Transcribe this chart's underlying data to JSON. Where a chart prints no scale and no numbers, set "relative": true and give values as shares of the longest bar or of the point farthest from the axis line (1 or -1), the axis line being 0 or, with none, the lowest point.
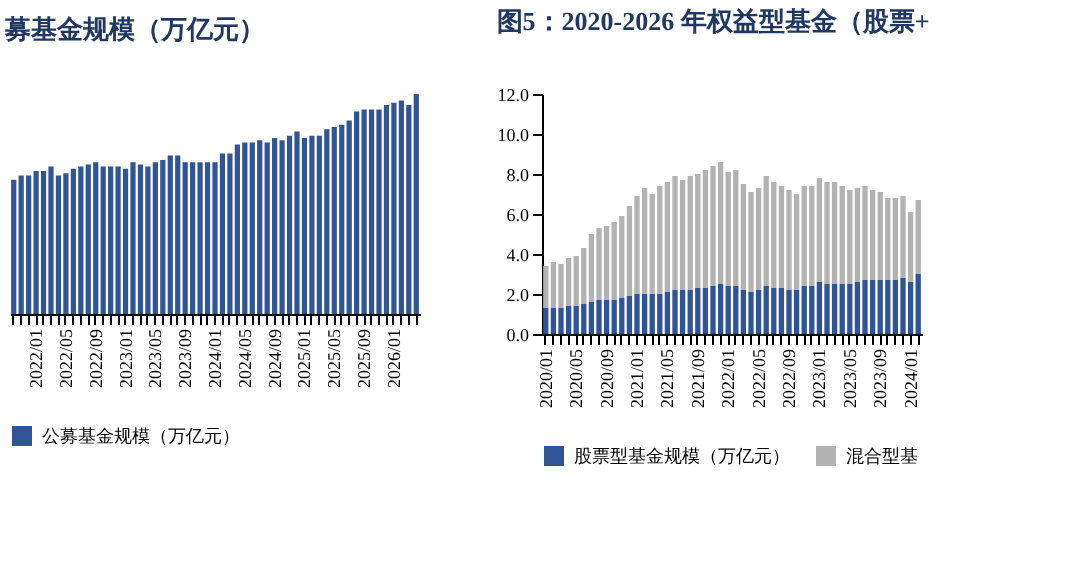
{
  "chart_data": [
    {
      "type": "bar",
      "title": "募基金规模（万亿元）",
      "relative": true,
      "legend": "bottom",
      "grid": false,
      "categories": [
        null,
        null,
        null,
        "2022/01",
        null,
        null,
        null,
        "2022/05",
        null,
        null,
        null,
        "2022/09",
        null,
        null,
        null,
        "2023/01",
        null,
        null,
        null,
        "2023/05",
        null,
        null,
        null,
        "2023/09",
        null,
        null,
        null,
        "2024/01",
        null,
        null,
        null,
        "2024/05",
        null,
        null,
        null,
        "2024/09",
        null,
        null,
        null,
        "2025/01",
        null,
        null,
        null,
        "2025/05",
        null,
        null,
        null,
        "2025/09",
        null,
        null,
        null,
        "2026/01",
        null,
        null,
        null
      ],
      "series": [
        {
          "name": "公募基金规模（万亿元）",
          "color": "#2f5597",
          "values": [
            0.61,
            0.63,
            0.63,
            0.65,
            0.65,
            0.67,
            0.63,
            0.64,
            0.66,
            0.67,
            0.68,
            0.69,
            0.67,
            0.67,
            0.67,
            0.66,
            0.69,
            0.68,
            0.67,
            0.69,
            0.7,
            0.72,
            0.72,
            0.69,
            0.69,
            0.69,
            0.69,
            0.69,
            0.73,
            0.73,
            0.77,
            0.78,
            0.78,
            0.79,
            0.78,
            0.8,
            0.79,
            0.81,
            0.83,
            0.8,
            0.81,
            0.81,
            0.84,
            0.85,
            0.86,
            0.88,
            0.92,
            0.93,
            0.93,
            0.93,
            0.95,
            0.96,
            0.97,
            0.95,
            1
          ]
        }
      ]
    },
    {
      "type": "bar",
      "title": "图5：2020-2026 年权益型基金（股票+",
      "stacked": true,
      "legend": "bottom",
      "grid": false,
      "ylim": [
        0,
        12
      ],
      "yticks": [
        {
          "value": 0,
          "label": "0.0"
        },
        {
          "value": 2,
          "label": "2.0"
        },
        {
          "value": 4,
          "label": "4.0"
        },
        {
          "value": 6,
          "label": "6.0"
        },
        {
          "value": 8,
          "label": "8.0"
        },
        {
          "value": 10,
          "label": "10.0"
        },
        {
          "value": 12,
          "label": "12.0"
        }
      ],
      "categories": [
        "2020/01",
        null,
        null,
        null,
        "2020/05",
        null,
        null,
        null,
        "2020/09",
        null,
        null,
        null,
        "2021/01",
        null,
        null,
        null,
        "2021/05",
        null,
        null,
        null,
        "2021/09",
        null,
        null,
        null,
        "2022/01",
        null,
        null,
        null,
        "2022/05",
        null,
        null,
        null,
        "2022/09",
        null,
        null,
        null,
        "2023/01",
        null,
        null,
        null,
        "2023/05",
        null,
        null,
        null,
        "2023/09",
        null,
        null,
        null,
        "2024/01",
        null
      ],
      "series": [
        {
          "name": "股票型基金规模（万亿元）",
          "color": "#2f5597",
          "values": [
            1.3,
            1.3,
            1.3,
            1.4,
            1.4,
            1.5,
            1.6,
            1.7,
            1.7,
            1.7,
            1.8,
            1.9,
            2.0,
            2.0,
            2.0,
            2.0,
            2.1,
            2.2,
            2.2,
            2.2,
            2.3,
            2.3,
            2.4,
            2.5,
            2.4,
            2.4,
            2.2,
            2.1,
            2.2,
            2.4,
            2.3,
            2.3,
            2.2,
            2.2,
            2.4,
            2.4,
            2.6,
            2.5,
            2.5,
            2.5,
            2.5,
            2.6,
            2.7,
            2.7,
            2.7,
            2.7,
            2.7,
            2.8,
            2.6,
            3.0
          ]
        },
        {
          "name": "混合型基",
          "color": "#b3b3b3",
          "values": [
            2.1,
            2.3,
            2.2,
            2.4,
            2.5,
            2.8,
            3.4,
            3.6,
            3.7,
            3.9,
            4.1,
            4.5,
            4.9,
            5.3,
            5.0,
            5.4,
            5.5,
            5.7,
            5.5,
            5.7,
            5.7,
            5.9,
            6.0,
            6.1,
            5.7,
            5.8,
            5.3,
            5.0,
            5.1,
            5.5,
            5.3,
            5.1,
            5.0,
            4.8,
            5.0,
            5.0,
            5.2,
            5.1,
            5.1,
            4.9,
            4.7,
            4.7,
            4.7,
            4.5,
            4.4,
            4.1,
            4.1,
            4.1,
            3.5,
            3.7
          ]
        }
      ]
    }
  ]
}
